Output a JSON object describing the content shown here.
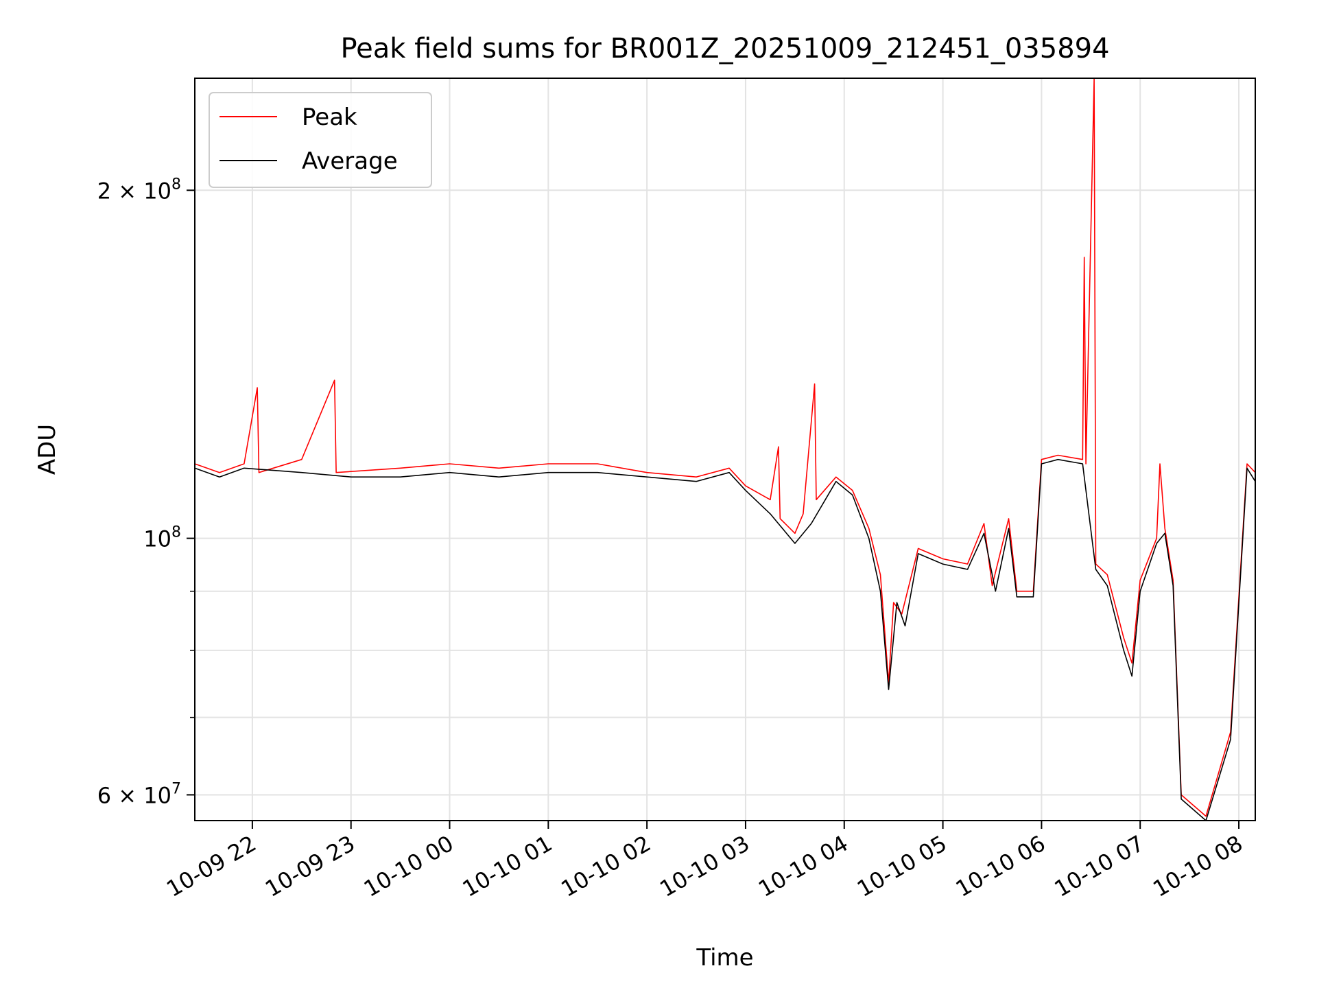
{
  "chart_data": {
    "type": "line",
    "title": "Peak field sums for BR001Z_20251009_212451_035894",
    "xlabel": "Time",
    "ylabel": "ADU",
    "y_scale": "log",
    "ylim": [
      57000000,
      250000000
    ],
    "xlim": [
      "2025-10-09 21:25",
      "2025-10-10 08:10"
    ],
    "grid": true,
    "legend_position": "upper-left",
    "x_ticks": [
      {
        "t": "2025-10-09 22:00",
        "label": "10-09 22"
      },
      {
        "t": "2025-10-09 23:00",
        "label": "10-09 23"
      },
      {
        "t": "2025-10-10 00:00",
        "label": "10-10 00"
      },
      {
        "t": "2025-10-10 01:00",
        "label": "10-10 01"
      },
      {
        "t": "2025-10-10 02:00",
        "label": "10-10 02"
      },
      {
        "t": "2025-10-10 03:00",
        "label": "10-10 03"
      },
      {
        "t": "2025-10-10 04:00",
        "label": "10-10 04"
      },
      {
        "t": "2025-10-10 05:00",
        "label": "10-10 05"
      },
      {
        "t": "2025-10-10 06:00",
        "label": "10-10 06"
      },
      {
        "t": "2025-10-10 07:00",
        "label": "10-10 07"
      },
      {
        "t": "2025-10-10 08:00",
        "label": "10-10 08"
      }
    ],
    "y_ticks_major": [
      {
        "value": 60000000,
        "label_base": "6 × 10",
        "label_exp": "7"
      },
      {
        "value": 100000000,
        "label_base": "10",
        "label_exp": "8"
      },
      {
        "value": 200000000,
        "label_base": "2 × 10",
        "label_exp": "8"
      }
    ],
    "y_minor_gridlines": [
      70000000,
      80000000,
      90000000
    ],
    "series": [
      {
        "name": "Peak",
        "color": "#ff0000",
        "points": [
          [
            "2025-10-09 21:25",
            116000000
          ],
          [
            "2025-10-09 21:40",
            114000000
          ],
          [
            "2025-10-09 21:55",
            116000000
          ],
          [
            "2025-10-09 22:03",
            135000000
          ],
          [
            "2025-10-09 22:04",
            114000000
          ],
          [
            "2025-10-09 22:30",
            117000000
          ],
          [
            "2025-10-09 22:50",
            137000000
          ],
          [
            "2025-10-09 22:51",
            114000000
          ],
          [
            "2025-10-09 23:30",
            115000000
          ],
          [
            "2025-10-10 00:00",
            116000000
          ],
          [
            "2025-10-10 00:30",
            115000000
          ],
          [
            "2025-10-10 01:00",
            116000000
          ],
          [
            "2025-10-10 01:30",
            116000000
          ],
          [
            "2025-10-10 02:00",
            114000000
          ],
          [
            "2025-10-10 02:30",
            113000000
          ],
          [
            "2025-10-10 02:50",
            115000000
          ],
          [
            "2025-10-10 03:00",
            111000000
          ],
          [
            "2025-10-10 03:15",
            108000000
          ],
          [
            "2025-10-10 03:20",
            120000000
          ],
          [
            "2025-10-10 03:21",
            104000000
          ],
          [
            "2025-10-10 03:30",
            101000000
          ],
          [
            "2025-10-10 03:35",
            105000000
          ],
          [
            "2025-10-10 03:42",
            136000000
          ],
          [
            "2025-10-10 03:43",
            108000000
          ],
          [
            "2025-10-10 03:55",
            113000000
          ],
          [
            "2025-10-10 04:05",
            110000000
          ],
          [
            "2025-10-10 04:15",
            102000000
          ],
          [
            "2025-10-10 04:22",
            93000000
          ],
          [
            "2025-10-10 04:27",
            75000000
          ],
          [
            "2025-10-10 04:30",
            88000000
          ],
          [
            "2025-10-10 04:35",
            86000000
          ],
          [
            "2025-10-10 04:45",
            98000000
          ],
          [
            "2025-10-10 05:00",
            96000000
          ],
          [
            "2025-10-10 05:15",
            95000000
          ],
          [
            "2025-10-10 05:25",
            103000000
          ],
          [
            "2025-10-10 05:30",
            91000000
          ],
          [
            "2025-10-10 05:40",
            104000000
          ],
          [
            "2025-10-10 05:45",
            90000000
          ],
          [
            "2025-10-10 05:55",
            90000000
          ],
          [
            "2025-10-10 06:00",
            117000000
          ],
          [
            "2025-10-10 06:10",
            118000000
          ],
          [
            "2025-10-10 06:25",
            117000000
          ],
          [
            "2025-10-10 06:26",
            175000000
          ],
          [
            "2025-10-10 06:27",
            116000000
          ],
          [
            "2025-10-10 06:32",
            250000000
          ],
          [
            "2025-10-10 06:33",
            95000000
          ],
          [
            "2025-10-10 06:40",
            93000000
          ],
          [
            "2025-10-10 06:50",
            82000000
          ],
          [
            "2025-10-10 06:55",
            78000000
          ],
          [
            "2025-10-10 07:00",
            92000000
          ],
          [
            "2025-10-10 07:10",
            100000000
          ],
          [
            "2025-10-10 07:12",
            116000000
          ],
          [
            "2025-10-10 07:15",
            102000000
          ],
          [
            "2025-10-10 07:20",
            92000000
          ],
          [
            "2025-10-10 07:25",
            60000000
          ],
          [
            "2025-10-10 07:40",
            57500000
          ],
          [
            "2025-10-10 07:55",
            68000000
          ],
          [
            "2025-10-10 08:05",
            116000000
          ],
          [
            "2025-10-10 08:10",
            114000000
          ]
        ]
      },
      {
        "name": "Average",
        "color": "#000000",
        "points": [
          [
            "2025-10-09 21:25",
            115000000
          ],
          [
            "2025-10-09 21:40",
            113000000
          ],
          [
            "2025-10-09 21:55",
            115000000
          ],
          [
            "2025-10-09 22:30",
            114000000
          ],
          [
            "2025-10-09 23:00",
            113000000
          ],
          [
            "2025-10-09 23:30",
            113000000
          ],
          [
            "2025-10-10 00:00",
            114000000
          ],
          [
            "2025-10-10 00:30",
            113000000
          ],
          [
            "2025-10-10 01:00",
            114000000
          ],
          [
            "2025-10-10 01:30",
            114000000
          ],
          [
            "2025-10-10 02:00",
            113000000
          ],
          [
            "2025-10-10 02:30",
            112000000
          ],
          [
            "2025-10-10 02:50",
            114000000
          ],
          [
            "2025-10-10 03:00",
            110000000
          ],
          [
            "2025-10-10 03:15",
            105000000
          ],
          [
            "2025-10-10 03:30",
            99000000
          ],
          [
            "2025-10-10 03:40",
            103000000
          ],
          [
            "2025-10-10 03:55",
            112000000
          ],
          [
            "2025-10-10 04:05",
            109000000
          ],
          [
            "2025-10-10 04:15",
            100000000
          ],
          [
            "2025-10-10 04:22",
            90000000
          ],
          [
            "2025-10-10 04:27",
            74000000
          ],
          [
            "2025-10-10 04:32",
            88000000
          ],
          [
            "2025-10-10 04:37",
            84000000
          ],
          [
            "2025-10-10 04:45",
            97000000
          ],
          [
            "2025-10-10 05:00",
            95000000
          ],
          [
            "2025-10-10 05:15",
            94000000
          ],
          [
            "2025-10-10 05:25",
            101000000
          ],
          [
            "2025-10-10 05:32",
            90000000
          ],
          [
            "2025-10-10 05:40",
            102000000
          ],
          [
            "2025-10-10 05:45",
            89000000
          ],
          [
            "2025-10-10 05:55",
            89000000
          ],
          [
            "2025-10-10 06:00",
            116000000
          ],
          [
            "2025-10-10 06:10",
            117000000
          ],
          [
            "2025-10-10 06:25",
            116000000
          ],
          [
            "2025-10-10 06:33",
            94000000
          ],
          [
            "2025-10-10 06:40",
            91000000
          ],
          [
            "2025-10-10 06:50",
            80000000
          ],
          [
            "2025-10-10 06:55",
            76000000
          ],
          [
            "2025-10-10 07:00",
            90000000
          ],
          [
            "2025-10-10 07:10",
            99000000
          ],
          [
            "2025-10-10 07:15",
            101000000
          ],
          [
            "2025-10-10 07:20",
            91000000
          ],
          [
            "2025-10-10 07:25",
            59500000
          ],
          [
            "2025-10-10 07:40",
            57000000
          ],
          [
            "2025-10-10 07:55",
            67000000
          ],
          [
            "2025-10-10 08:05",
            115000000
          ],
          [
            "2025-10-10 08:10",
            112000000
          ]
        ]
      }
    ]
  }
}
